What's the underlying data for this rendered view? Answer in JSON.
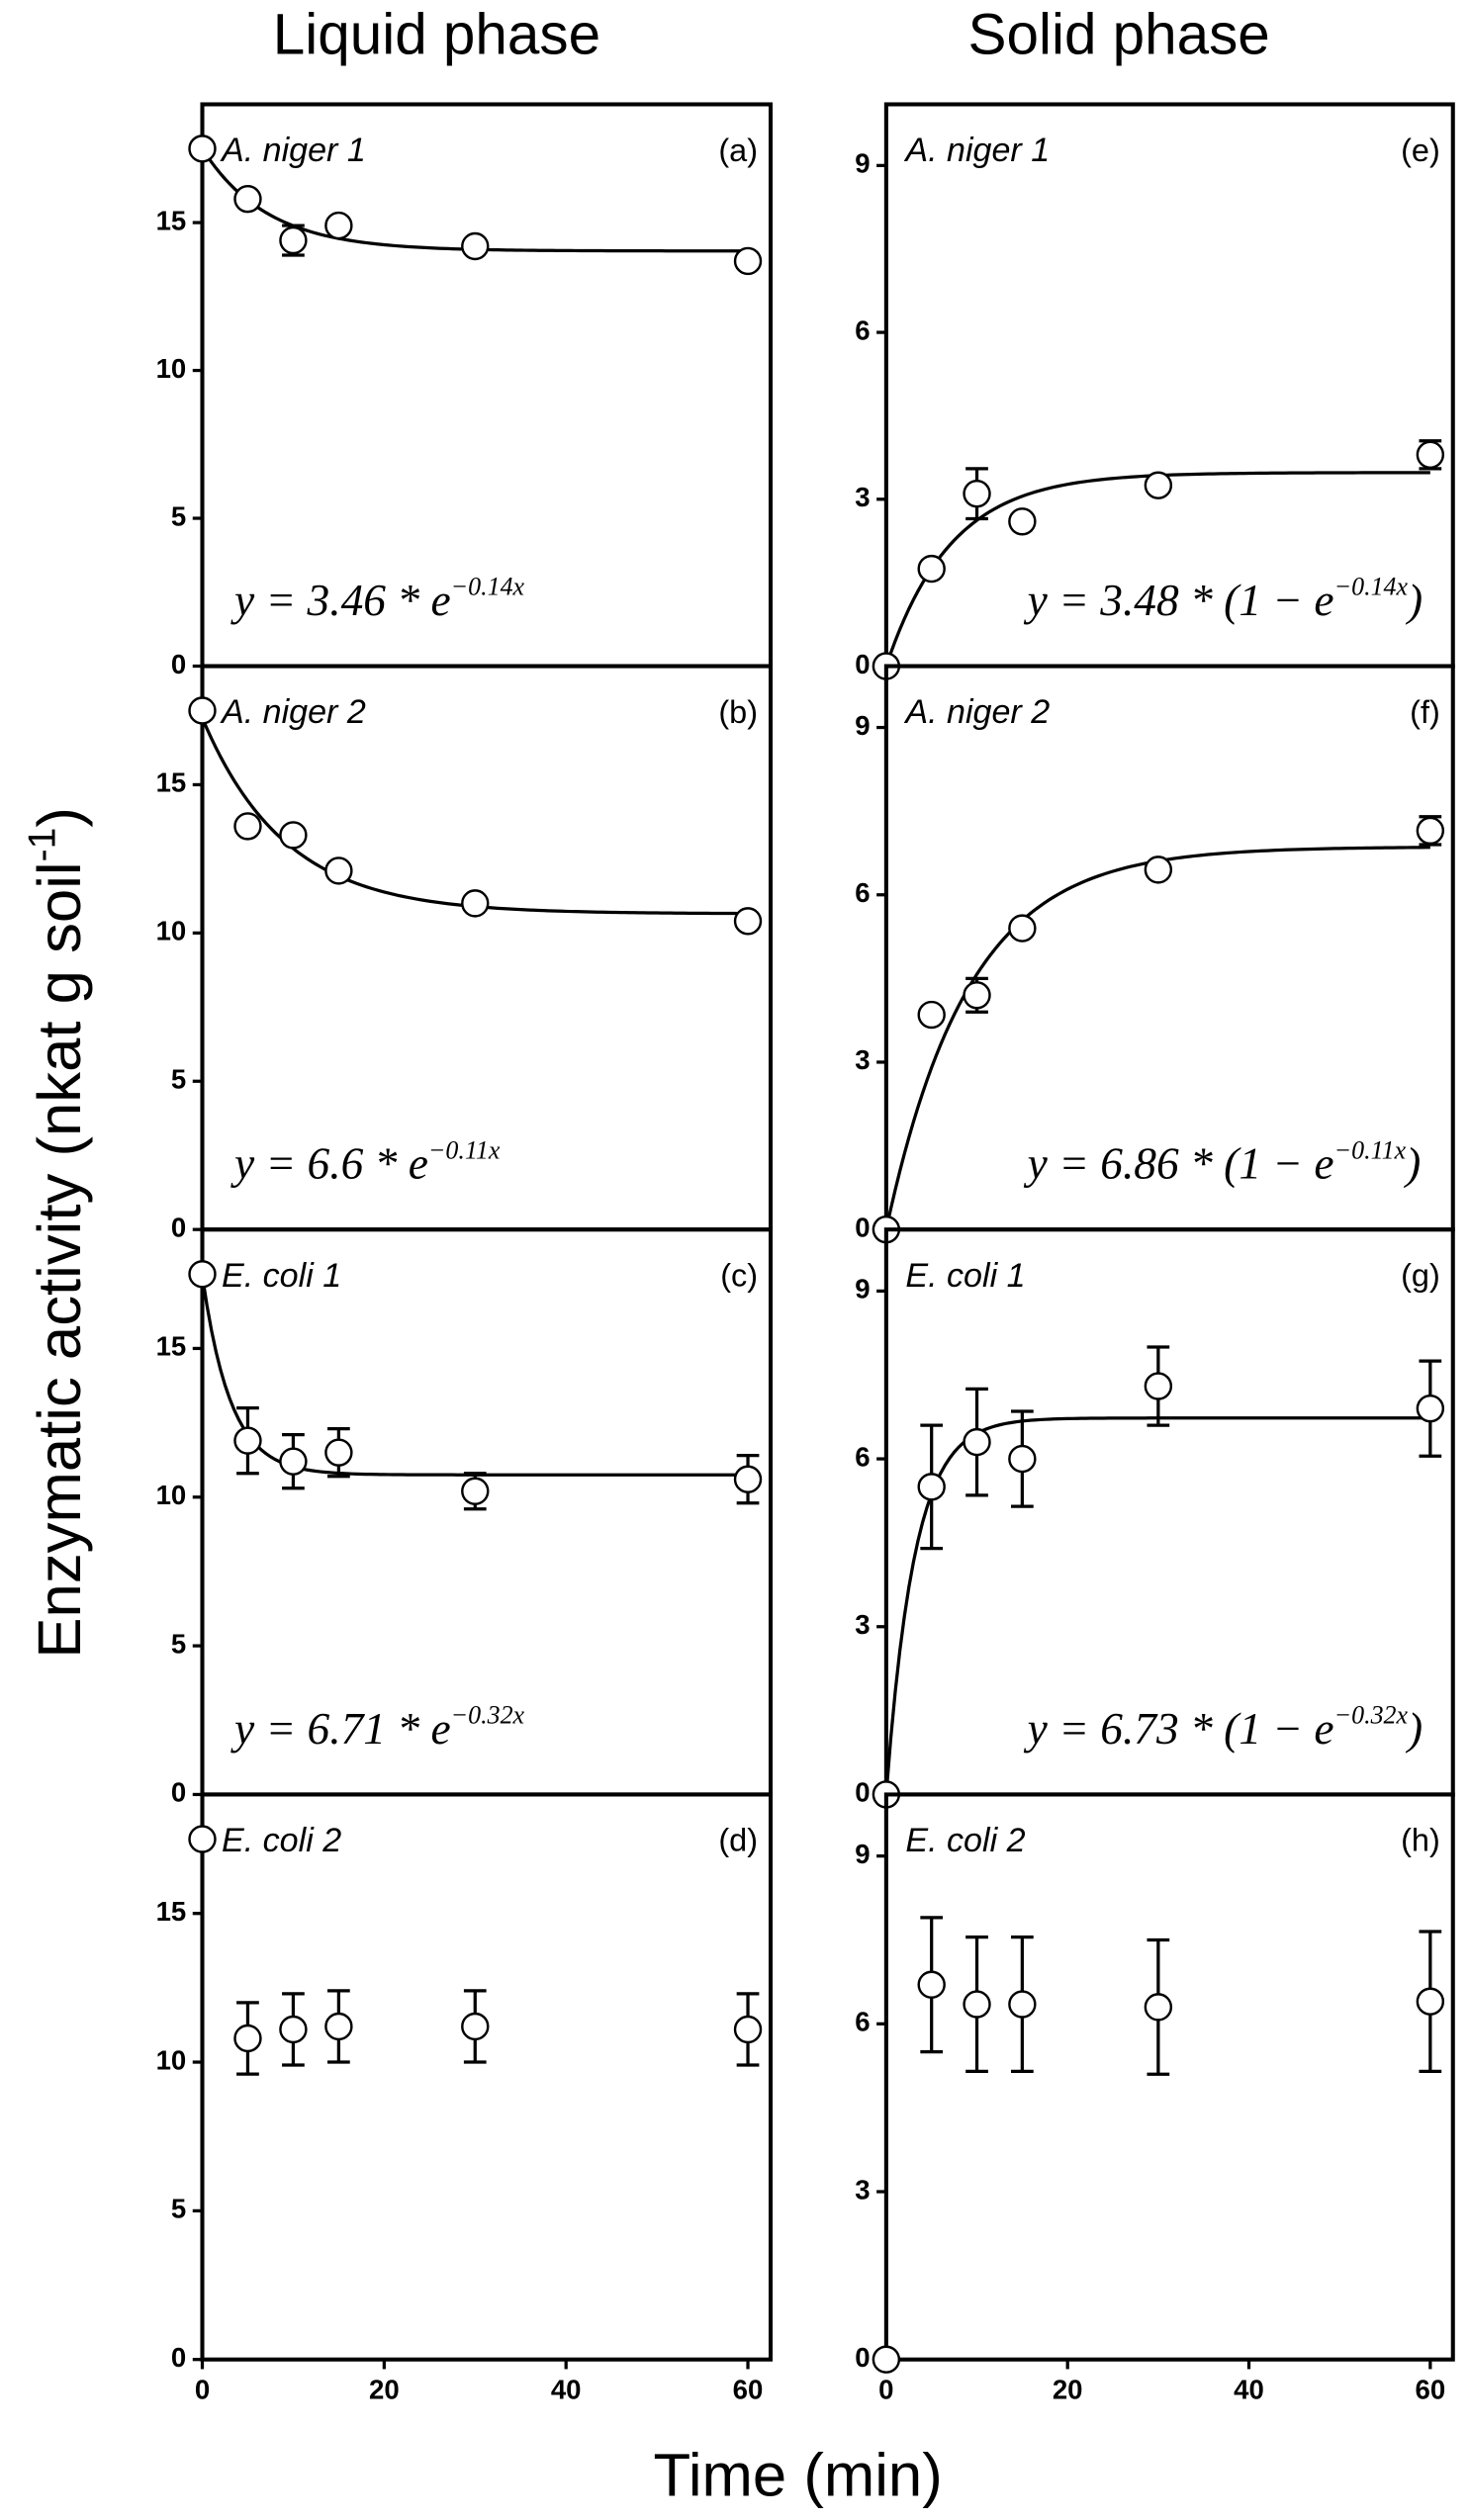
{
  "column_titles": [
    "Liquid phase",
    "Solid phase"
  ],
  "y_label": [
    "Enzymatic activity (nkat g soil",
    "-1",
    ")"
  ],
  "x_label": "Time (min)",
  "chart_data": [
    {
      "type": "scatter",
      "title": "A. niger 1",
      "panel_label": "(a)",
      "x": [
        0,
        5,
        10,
        15,
        30,
        60
      ],
      "values": [
        17.5,
        15.8,
        14.4,
        14.9,
        14.2,
        13.7
      ],
      "errors": [
        null,
        null,
        0.5,
        null,
        null,
        null
      ],
      "xlim": [
        0,
        62.5
      ],
      "ylim": [
        0,
        19
      ],
      "yticks": [
        0,
        5,
        10,
        15
      ],
      "fit": {
        "form": "decay",
        "amplitude": 3.46,
        "rate": 0.14,
        "offset": 14.04
      },
      "equation": [
        "y = 3.46 * e",
        "−0.14x"
      ]
    },
    {
      "type": "scatter",
      "title": "A. niger 2",
      "panel_label": "(b)",
      "x": [
        0,
        5,
        10,
        15,
        30,
        60
      ],
      "values": [
        17.5,
        13.6,
        13.3,
        12.1,
        11.0,
        10.4
      ],
      "errors": [
        null,
        null,
        null,
        null,
        null,
        null
      ],
      "xlim": [
        0,
        62.5
      ],
      "ylim": [
        0,
        19
      ],
      "yticks": [
        0,
        5,
        10,
        15
      ],
      "fit": {
        "form": "decay",
        "amplitude": 6.6,
        "rate": 0.11,
        "offset": 10.65
      },
      "equation": [
        "y = 6.6 * e",
        "−0.11x"
      ]
    },
    {
      "type": "scatter",
      "title": "E. coli 1",
      "panel_label": "(c)",
      "x": [
        0,
        5,
        10,
        15,
        30,
        60
      ],
      "values": [
        17.5,
        11.9,
        11.2,
        11.5,
        10.2,
        10.6
      ],
      "errors": [
        null,
        1.1,
        0.9,
        0.8,
        0.6,
        0.8
      ],
      "xlim": [
        0,
        62.5
      ],
      "ylim": [
        0,
        19
      ],
      "yticks": [
        0,
        5,
        10,
        15
      ],
      "fit": {
        "form": "decay",
        "amplitude": 6.71,
        "rate": 0.32,
        "offset": 10.75
      },
      "equation": [
        "y = 6.71 * e",
        "−0.32x"
      ]
    },
    {
      "type": "scatter",
      "title": "E. coli 2",
      "panel_label": "(d)",
      "x": [
        0,
        5,
        10,
        15,
        30,
        60
      ],
      "values": [
        17.5,
        10.8,
        11.1,
        11.2,
        11.2,
        11.1
      ],
      "errors": [
        null,
        1.2,
        1.2,
        1.2,
        1.2,
        1.2
      ],
      "xlim": [
        0,
        62.5
      ],
      "ylim": [
        0,
        19
      ],
      "yticks": [
        0,
        5,
        10,
        15
      ],
      "xticks": [
        0,
        20,
        40,
        60
      ]
    },
    {
      "type": "scatter",
      "title": "A. niger 1",
      "panel_label": "(e)",
      "x": [
        0,
        5,
        10,
        15,
        30,
        60
      ],
      "values": [
        0,
        1.75,
        3.1,
        2.6,
        3.25,
        3.8
      ],
      "errors": [
        null,
        null,
        0.45,
        null,
        null,
        0.25
      ],
      "xlim": [
        0,
        62.5
      ],
      "ylim": [
        0,
        10.1
      ],
      "yticks": [
        0,
        3,
        6,
        9
      ],
      "fit": {
        "form": "rise",
        "amplitude": 3.48,
        "rate": 0.14,
        "offset": 0
      },
      "equation": [
        "y = 3.48 * (1 − e",
        "−0.14x",
        ")"
      ]
    },
    {
      "type": "scatter",
      "title": "A. niger 2",
      "panel_label": "(f)",
      "x": [
        0,
        5,
        10,
        15,
        30,
        60
      ],
      "values": [
        0,
        3.85,
        4.2,
        5.4,
        6.45,
        7.15
      ],
      "errors": [
        null,
        null,
        0.3,
        null,
        null,
        0.25
      ],
      "xlim": [
        0,
        62.5
      ],
      "ylim": [
        0,
        10.1
      ],
      "yticks": [
        0,
        3,
        6,
        9
      ],
      "fit": {
        "form": "rise",
        "amplitude": 6.86,
        "rate": 0.11,
        "offset": 0
      },
      "equation": [
        "y = 6.86 * (1 − e",
        "−0.11x",
        ")"
      ]
    },
    {
      "type": "scatter",
      "title": "E. coli 1",
      "panel_label": "(g)",
      "x": [
        0,
        5,
        10,
        15,
        30,
        60
      ],
      "values": [
        0,
        5.5,
        6.3,
        6.0,
        7.3,
        6.9
      ],
      "errors": [
        null,
        1.1,
        0.95,
        0.85,
        0.7,
        0.85
      ],
      "xlim": [
        0,
        62.5
      ],
      "ylim": [
        0,
        10.1
      ],
      "yticks": [
        0,
        3,
        6,
        9
      ],
      "fit": {
        "form": "rise",
        "amplitude": 6.73,
        "rate": 0.32,
        "offset": 0
      },
      "equation": [
        "y = 6.73 * (1 − e",
        "−0.32x",
        ")"
      ]
    },
    {
      "type": "scatter",
      "title": "E. coli 2",
      "panel_label": "(h)",
      "x": [
        0,
        5,
        10,
        15,
        30,
        60
      ],
      "values": [
        0,
        6.7,
        6.35,
        6.35,
        6.3,
        6.4
      ],
      "errors": [
        null,
        1.2,
        1.2,
        1.2,
        1.2,
        1.25
      ],
      "xlim": [
        0,
        62.5
      ],
      "ylim": [
        0,
        10.1
      ],
      "yticks": [
        0,
        3,
        6,
        9
      ],
      "xticks": [
        0,
        20,
        40,
        60
      ]
    }
  ]
}
